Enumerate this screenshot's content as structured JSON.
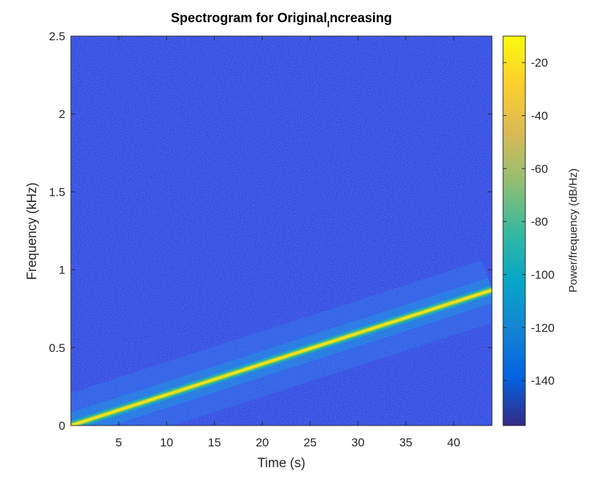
{
  "chart_data": {
    "type": "heatmap",
    "title": "Spectrogram for Original",
    "title_subscript": "I",
    "title_suffix": "ncreasing",
    "xlabel": "Time (s)",
    "ylabel": "Frequency (kHz)",
    "xlim": [
      0,
      44
    ],
    "ylim": [
      0,
      2.5
    ],
    "x_ticks": [
      5,
      10,
      15,
      20,
      25,
      30,
      35,
      40
    ],
    "y_ticks": [
      0,
      0.5,
      1,
      1.5,
      2,
      2.5
    ],
    "y_tick_labels": [
      "0",
      "0.5",
      "1",
      "1.5",
      "2",
      "2.5"
    ],
    "chirp": {
      "t": [
        0,
        44
      ],
      "f_khz": [
        0,
        0.87
      ]
    },
    "colorbar": {
      "label": "Power/frequency (dB/Hz)",
      "range": [
        -157,
        -10
      ],
      "ticks": [
        -20,
        -40,
        -60,
        -80,
        -100,
        -120,
        -140
      ],
      "colormap": "parula"
    },
    "background_level_db": -132,
    "grid": false,
    "legend": "none"
  }
}
